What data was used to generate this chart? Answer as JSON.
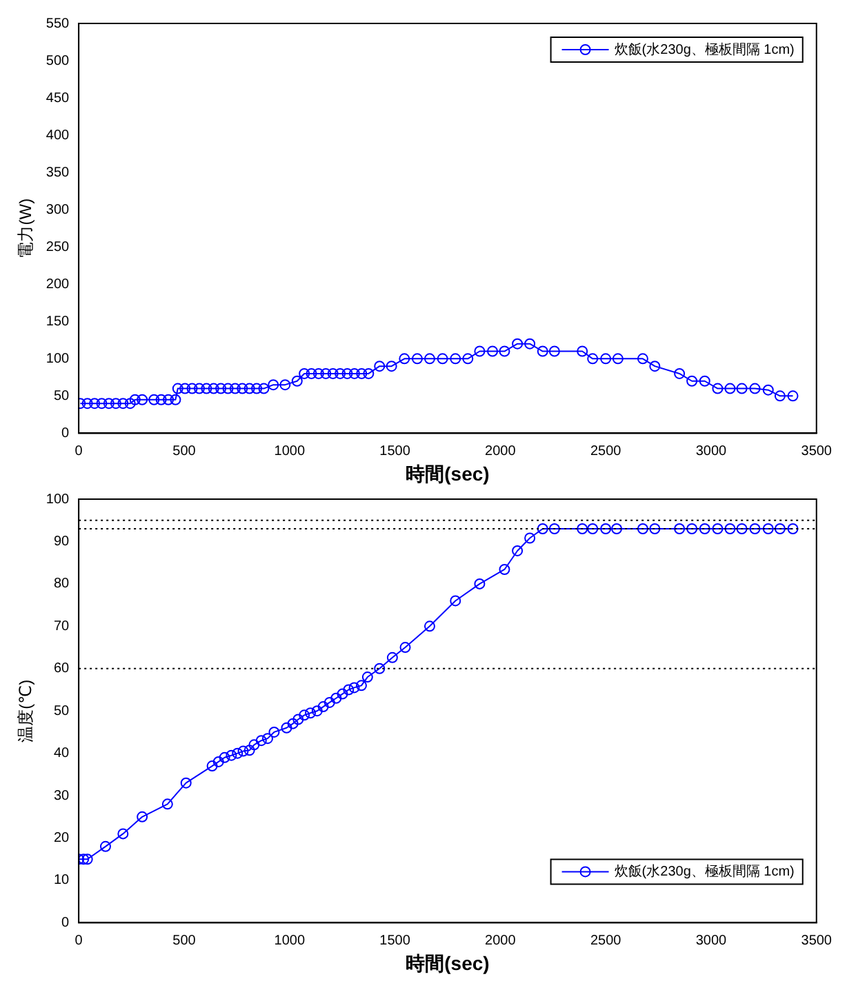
{
  "chart_data": [
    {
      "type": "line",
      "xlabel": "時間(sec)",
      "ylabel": "電力(W)",
      "xlim": [
        0,
        3500
      ],
      "xticks": [
        0,
        500,
        1000,
        1500,
        2000,
        2500,
        3000,
        3500
      ],
      "ylim": [
        0,
        550
      ],
      "yticks": [
        0,
        50,
        100,
        150,
        200,
        250,
        300,
        350,
        400,
        450,
        500,
        550
      ],
      "grid": false,
      "legend": "top right",
      "marker": "circle",
      "line_style": "solid",
      "series": [
        {
          "name": "炊飯(水230g、極板間隔 1cm)",
          "color": "#0000ff",
          "x": [
            7,
            41,
            75,
            109,
            143,
            176,
            210,
            244,
            267,
            301,
            357,
            391,
            425,
            459,
            470,
            504,
            538,
            572,
            606,
            640,
            674,
            708,
            742,
            776,
            810,
            844,
            878,
            923,
            979,
            1036,
            1070,
            1104,
            1138,
            1172,
            1206,
            1240,
            1274,
            1308,
            1342,
            1375,
            1427,
            1484,
            1545,
            1606,
            1665,
            1726,
            1787,
            1846,
            1902,
            1963,
            2020,
            2081,
            2140,
            2201,
            2257,
            2389,
            2438,
            2500,
            2558,
            2676,
            2733,
            2850,
            2909,
            2970,
            3031,
            3090,
            3146,
            3208,
            3271,
            3327,
            3388
          ],
          "values": [
            40,
            40,
            40,
            40,
            40,
            40,
            40,
            40,
            45,
            45,
            45,
            45,
            45,
            45,
            60,
            60,
            60,
            60,
            60,
            60,
            60,
            60,
            60,
            60,
            60,
            60,
            60,
            65,
            65,
            70,
            80,
            80,
            80,
            80,
            80,
            80,
            80,
            80,
            80,
            80,
            90,
            90,
            100,
            100,
            100,
            100,
            100,
            100,
            110,
            110,
            110,
            120,
            120,
            110,
            110,
            110,
            100,
            100,
            100,
            100,
            90,
            80,
            70,
            70,
            60,
            60,
            60,
            60,
            58,
            50,
            50
          ]
        }
      ]
    },
    {
      "type": "line",
      "xlabel": "時間(sec)",
      "ylabel": "温度(℃)",
      "xlim": [
        0,
        3500
      ],
      "xticks": [
        0,
        500,
        1000,
        1500,
        2000,
        2500,
        3000,
        3500
      ],
      "ylim": [
        0,
        100
      ],
      "yticks": [
        0,
        10,
        20,
        30,
        40,
        50,
        60,
        70,
        80,
        90,
        100
      ],
      "grid": false,
      "legend": "bottom right",
      "marker": "circle",
      "line_style": "solid",
      "ref_lines": [
        {
          "axis": "y",
          "value": 95,
          "line_style": "dotted",
          "color": "#000000"
        },
        {
          "axis": "y",
          "value": 93,
          "line_style": "dotted",
          "color": "#000000"
        },
        {
          "axis": "y",
          "value": 60,
          "line_style": "dotted",
          "color": "#000000"
        }
      ],
      "series": [
        {
          "name": "炊飯(水230g、極板間隔 1cm)",
          "color": "#0000ff",
          "x": [
            0,
            23,
            41,
            127,
            210,
            301,
            421,
            509,
            633,
            663,
            692,
            724,
            753,
            780,
            810,
            832,
            866,
            896,
            927,
            986,
            1016,
            1041,
            1070,
            1099,
            1131,
            1160,
            1190,
            1221,
            1251,
            1280,
            1307,
            1341,
            1370,
            1427,
            1488,
            1549,
            1665,
            1787,
            1902,
            2020,
            2081,
            2140,
            2201,
            2257,
            2389,
            2438,
            2500,
            2552,
            2676,
            2733,
            2850,
            2909,
            2970,
            3031,
            3090,
            3146,
            3208,
            3271,
            3327,
            3388
          ],
          "values": [
            15,
            15,
            15,
            18,
            21,
            25,
            28,
            33,
            37,
            38,
            39,
            39.5,
            40,
            40.5,
            40.7,
            42,
            43,
            43.5,
            45,
            46,
            47,
            48,
            49,
            49.5,
            50,
            51,
            52,
            53,
            54,
            55,
            55.5,
            56,
            58,
            60,
            62.6,
            65,
            70,
            76,
            80,
            83.4,
            87.8,
            90.8,
            93,
            93,
            93,
            93,
            93,
            93,
            93,
            93,
            93,
            93,
            93,
            93,
            93,
            93,
            93,
            93,
            93,
            93
          ]
        }
      ]
    }
  ]
}
